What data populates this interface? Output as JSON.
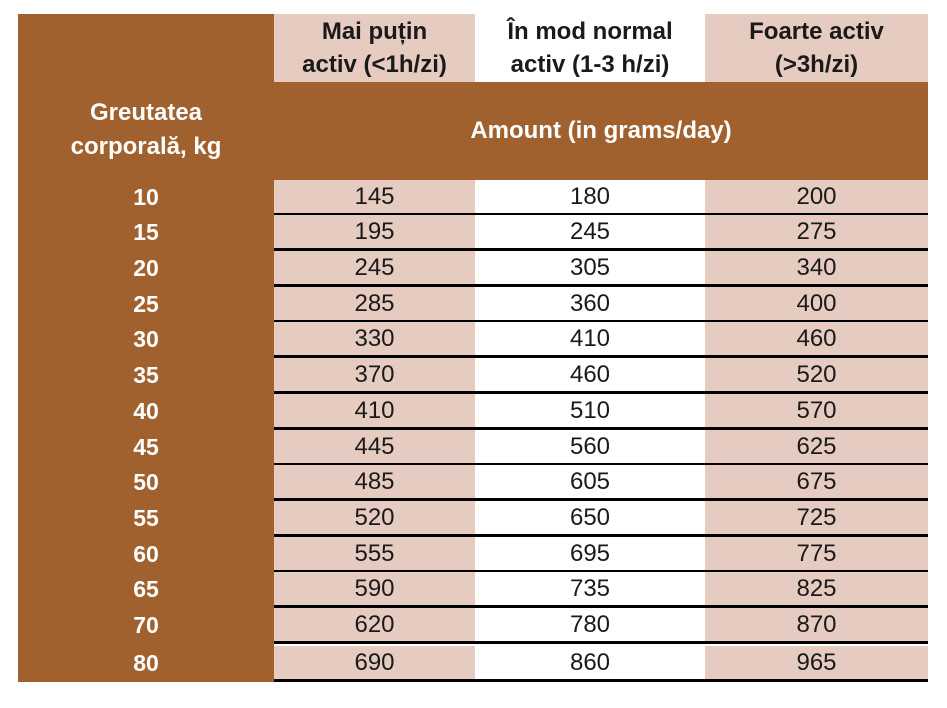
{
  "header": {
    "row_label": "Greutatea\ncorporală, kg",
    "amount_label": "Amount (in grams/day)",
    "columns": [
      "Mai puțin\nactiv (<1h/zi)",
      "În mod normal\nactiv (1-3 h/zi)",
      "Foarte activ\n(>3h/zi)"
    ]
  },
  "rows": [
    {
      "weight": "10",
      "values": [
        "145",
        "180",
        "200"
      ]
    },
    {
      "weight": "15",
      "values": [
        "195",
        "245",
        "275"
      ]
    },
    {
      "weight": "20",
      "values": [
        "245",
        "305",
        "340"
      ]
    },
    {
      "weight": "25",
      "values": [
        "285",
        "360",
        "400"
      ]
    },
    {
      "weight": "30",
      "values": [
        "330",
        "410",
        "460"
      ]
    },
    {
      "weight": "35",
      "values": [
        "370",
        "460",
        "520"
      ]
    },
    {
      "weight": "40",
      "values": [
        "410",
        "510",
        "570"
      ]
    },
    {
      "weight": "45",
      "values": [
        "445",
        "560",
        "625"
      ]
    },
    {
      "weight": "50",
      "values": [
        "485",
        "605",
        "675"
      ]
    },
    {
      "weight": "55",
      "values": [
        "520",
        "650",
        "725"
      ]
    },
    {
      "weight": "60",
      "values": [
        "555",
        "695",
        "775"
      ]
    },
    {
      "weight": "65",
      "values": [
        "590",
        "735",
        "825"
      ]
    },
    {
      "weight": "70",
      "values": [
        "620",
        "780",
        "870"
      ]
    },
    {
      "weight": "80",
      "values": [
        "690",
        "860",
        "965"
      ]
    }
  ],
  "colors": {
    "brown": "#A0612F",
    "pink": "#E6CBC0",
    "white": "#FFFFFF",
    "separator": "#000000"
  }
}
